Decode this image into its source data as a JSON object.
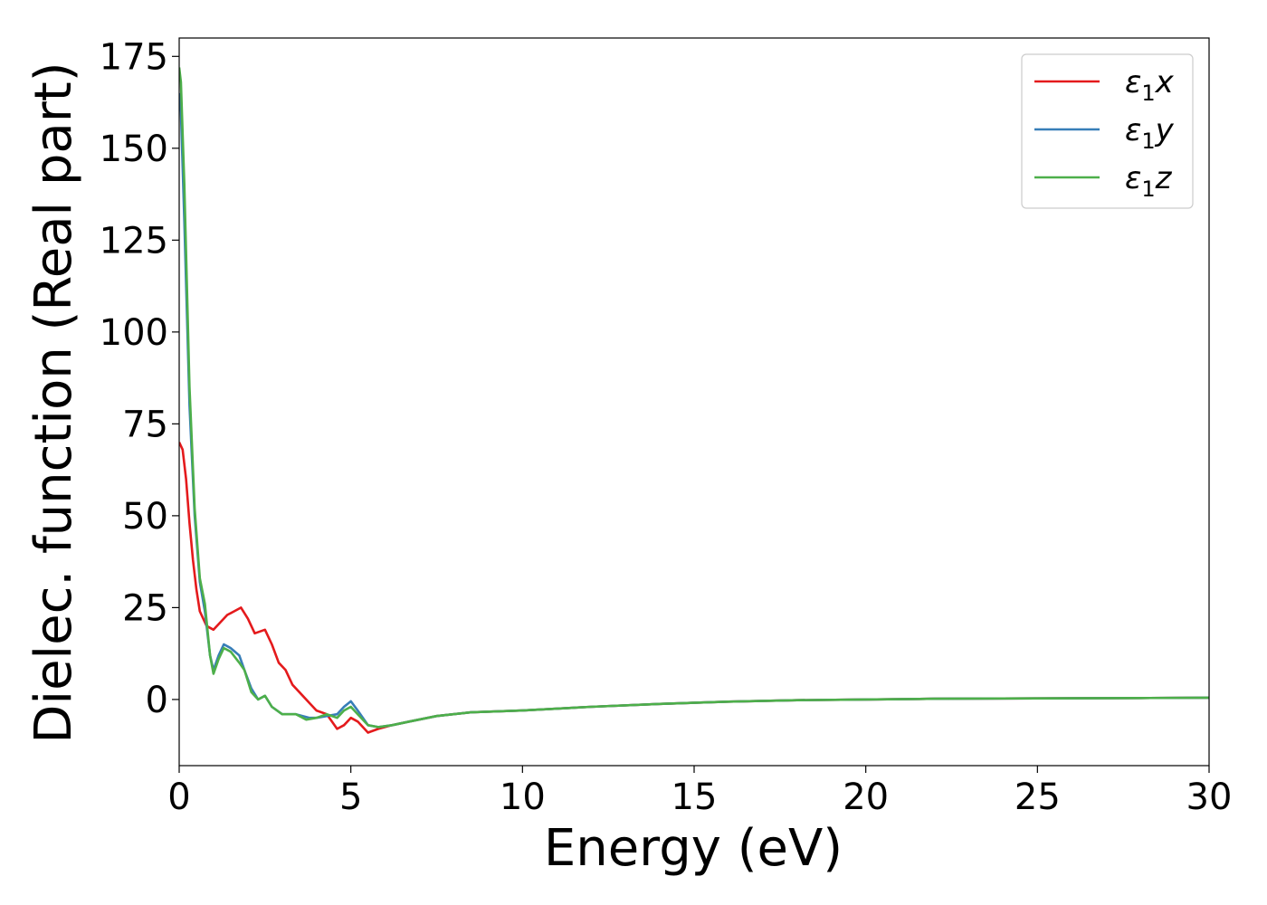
{
  "chart_data": {
    "type": "line",
    "xlabel": "Energy (eV)",
    "ylabel": "Dielec. function (Real part)",
    "xlim": [
      0,
      30
    ],
    "ylim": [
      -18,
      180
    ],
    "xticks": [
      0,
      5,
      10,
      15,
      20,
      25,
      30
    ],
    "yticks": [
      0,
      25,
      50,
      75,
      100,
      125,
      150,
      175
    ],
    "grid": false,
    "legend_position": "top-right",
    "series": [
      {
        "name": "ε₁x",
        "legend_main": "ε",
        "legend_sub": "1",
        "legend_tail": "x",
        "color": "#e41a1c",
        "x": [
          0,
          0.1,
          0.2,
          0.3,
          0.4,
          0.5,
          0.6,
          0.8,
          1.0,
          1.2,
          1.4,
          1.6,
          1.8,
          2.0,
          2.2,
          2.5,
          2.7,
          2.9,
          3.1,
          3.3,
          3.5,
          3.8,
          4.0,
          4.3,
          4.6,
          4.8,
          5.0,
          5.2,
          5.5,
          5.8,
          6.2,
          6.7,
          7.5,
          8.5,
          10,
          12,
          14,
          16,
          18,
          20,
          22,
          25,
          28,
          30
        ],
        "y": [
          70,
          68,
          60,
          48,
          38,
          30,
          24,
          20,
          19,
          21,
          23,
          24,
          25,
          22,
          18,
          19,
          15,
          10,
          8,
          4,
          2,
          -1,
          -3,
          -4,
          -8,
          -7,
          -5,
          -6,
          -9,
          -8,
          -7,
          -6,
          -4.5,
          -3.5,
          -3,
          -2,
          -1.2,
          -0.6,
          -0.2,
          0,
          0.2,
          0.3,
          0.4,
          0.5
        ]
      },
      {
        "name": "ε₁y",
        "legend_main": "ε",
        "legend_sub": "1",
        "legend_tail": "y",
        "color": "#377eb8",
        "x": [
          0,
          0.05,
          0.15,
          0.3,
          0.45,
          0.6,
          0.75,
          0.9,
          1.0,
          1.15,
          1.3,
          1.5,
          1.75,
          1.9,
          2.1,
          2.3,
          2.5,
          2.7,
          3.0,
          3.4,
          3.8,
          4.0,
          4.3,
          4.6,
          4.8,
          5.0,
          5.2,
          5.5,
          5.8,
          6.2,
          6.7,
          7.5,
          8.5,
          10,
          12,
          14,
          16,
          18,
          20,
          22,
          25,
          28,
          30
        ],
        "y": [
          165,
          160,
          130,
          80,
          50,
          32,
          24,
          12,
          8,
          12,
          15,
          14,
          12,
          8,
          3,
          0,
          1,
          -2,
          -4,
          -4,
          -5,
          -5,
          -4.5,
          -4,
          -2,
          -0.5,
          -3,
          -7,
          -7.5,
          -7,
          -6,
          -4.5,
          -3.5,
          -3,
          -2,
          -1.2,
          -0.6,
          -0.2,
          0,
          0.2,
          0.3,
          0.4,
          0.5
        ]
      },
      {
        "name": "ε₁z",
        "legend_main": "ε",
        "legend_sub": "1",
        "legend_tail": "z",
        "color": "#4daf4a",
        "x": [
          0,
          0.05,
          0.15,
          0.3,
          0.45,
          0.6,
          0.75,
          0.9,
          1.0,
          1.15,
          1.3,
          1.5,
          1.75,
          1.9,
          2.1,
          2.3,
          2.5,
          2.7,
          3.0,
          3.4,
          3.7,
          4.0,
          4.3,
          4.6,
          4.8,
          5.0,
          5.2,
          5.5,
          5.8,
          6.2,
          6.7,
          7.5,
          8.5,
          10,
          12,
          14,
          16,
          18,
          20,
          22,
          25,
          28,
          30
        ],
        "y": [
          172,
          168,
          140,
          85,
          52,
          33,
          26,
          12,
          7,
          11,
          14,
          13,
          10,
          8,
          2,
          0,
          1,
          -2,
          -4,
          -4,
          -5.5,
          -5,
          -4,
          -5,
          -3,
          -2,
          -4,
          -7,
          -7.5,
          -7,
          -6,
          -4.5,
          -3.5,
          -3,
          -2,
          -1.2,
          -0.6,
          -0.2,
          0,
          0.2,
          0.3,
          0.4,
          0.5
        ]
      }
    ]
  }
}
